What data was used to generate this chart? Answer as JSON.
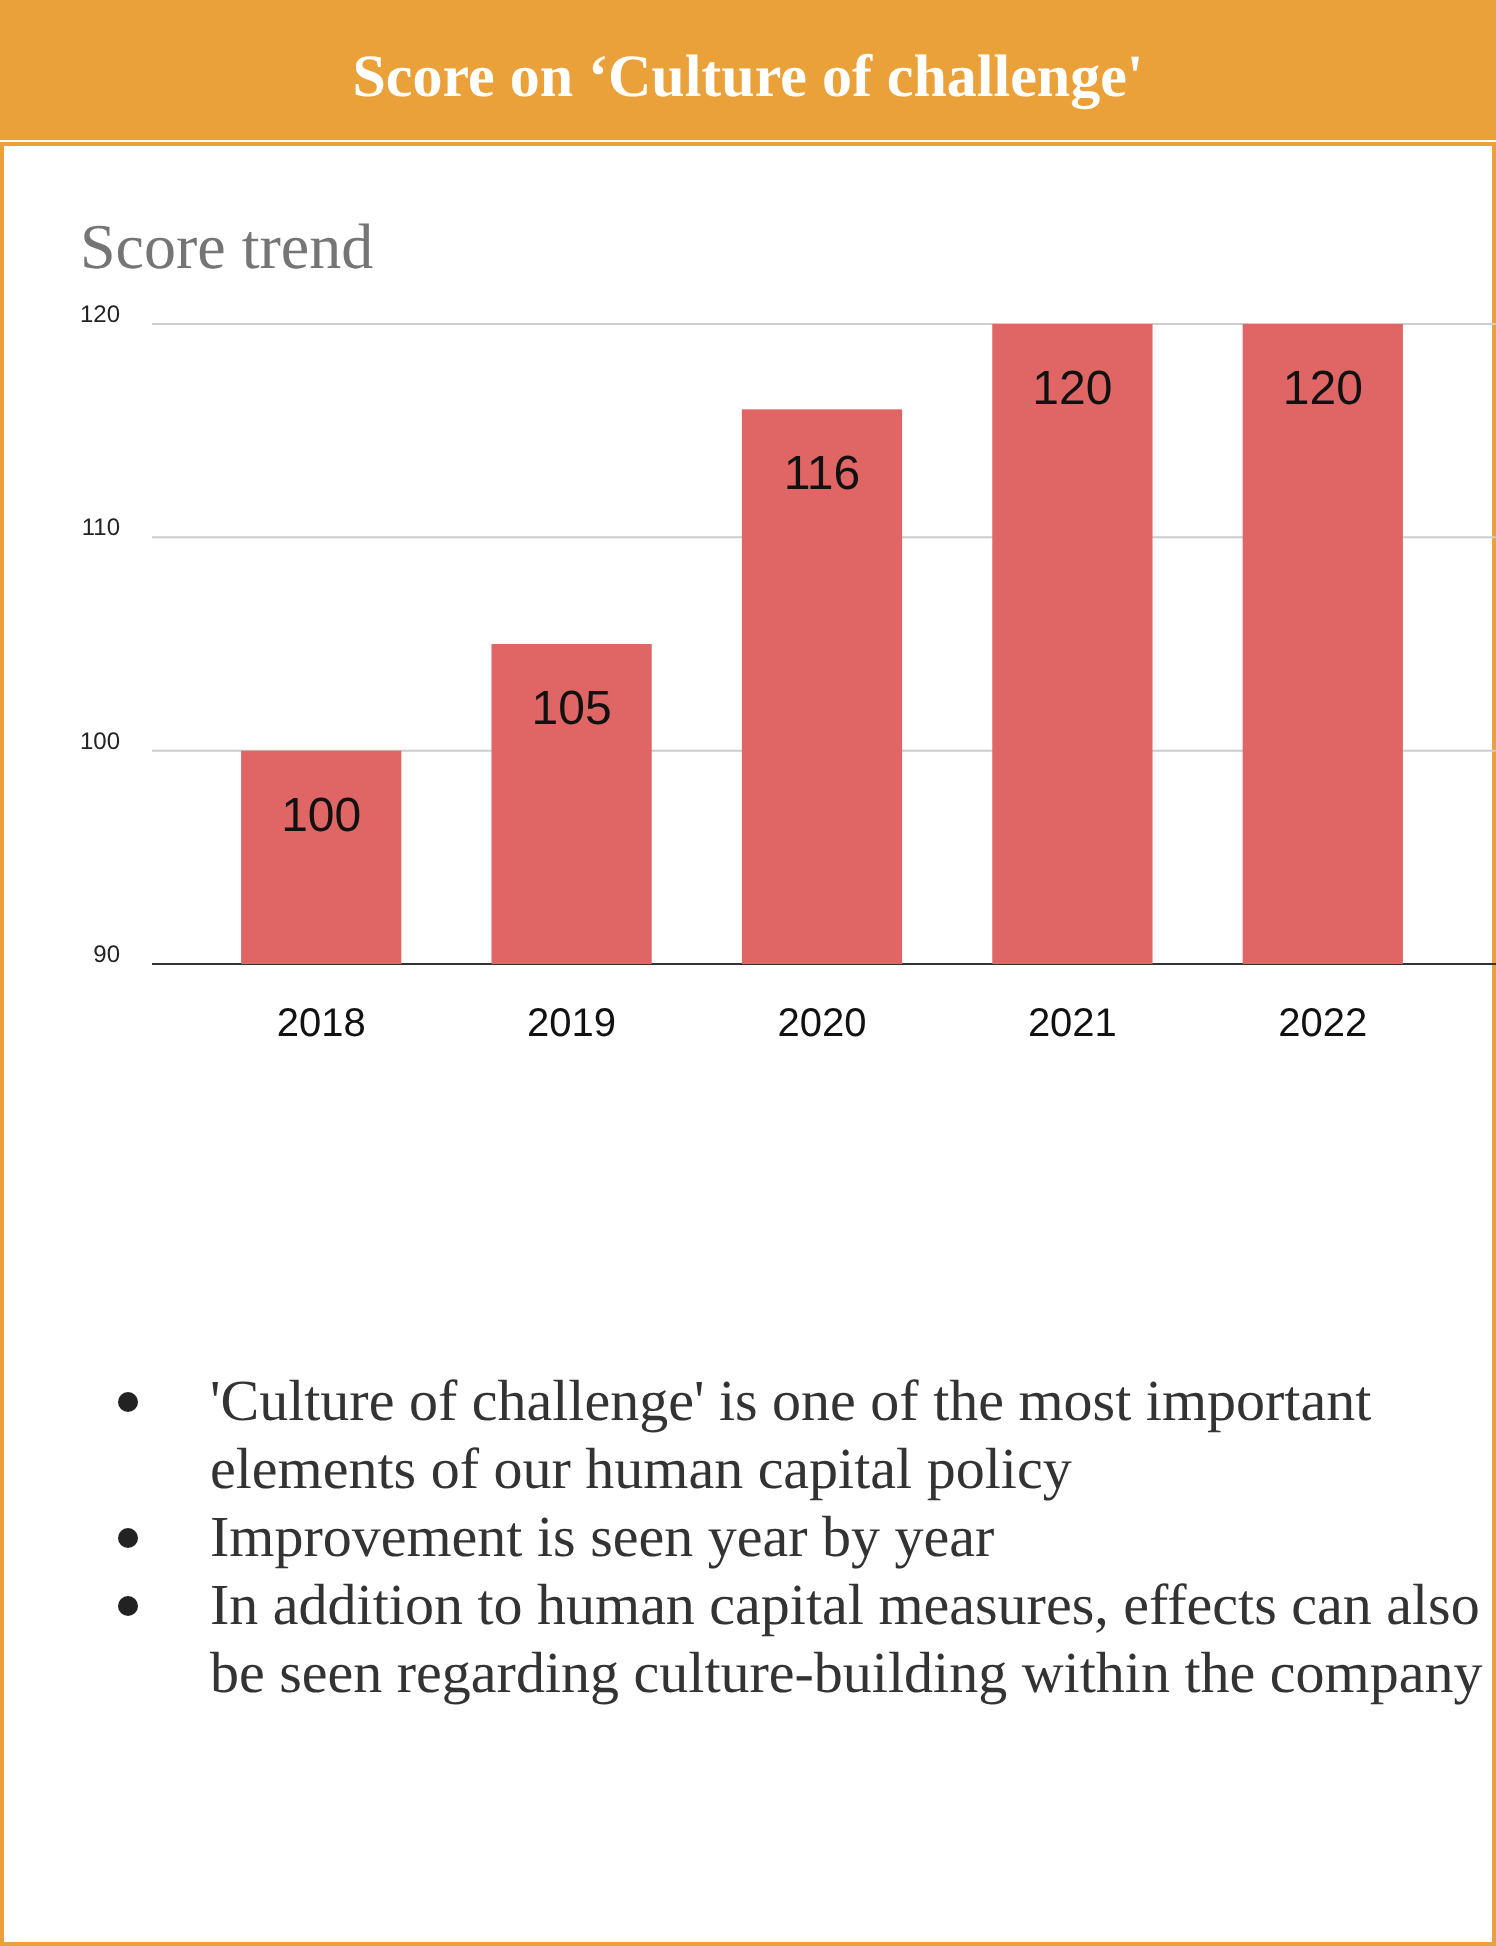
{
  "chart_data": {
    "type": "bar",
    "title": "Score on ‘Culture of challenge'",
    "subtitle": "Score trend",
    "categories": [
      "2018",
      "2019",
      "2020",
      "2021",
      "2022"
    ],
    "values": [
      100,
      105,
      116,
      120,
      120
    ],
    "color": "#e06666",
    "ylim": [
      90,
      120
    ],
    "yticks": [
      90,
      100,
      110,
      120
    ],
    "grid": "y",
    "data_labels": true,
    "annotations": [
      "'Culture of challenge' is one of the most important elements of our human capital policy",
      "Improvement is seen year by year",
      "In addition to human capital measures, effects can also be seen regarding culture-building within the company"
    ]
  }
}
